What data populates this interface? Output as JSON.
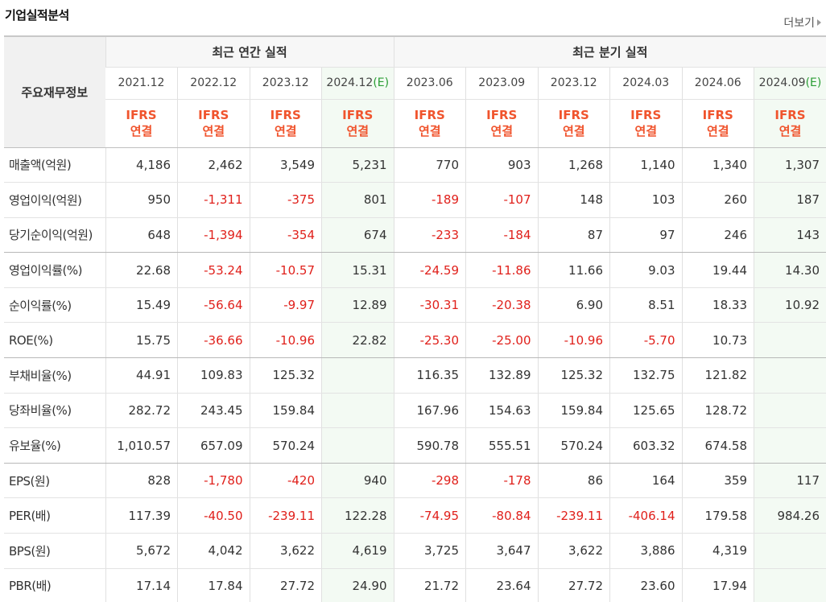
{
  "header": {
    "title": "기업실적분석",
    "more_label": "더보기"
  },
  "table": {
    "label_header": "주요재무정보",
    "groups": [
      "최근 연간 실적",
      "최근 분기 실적"
    ],
    "periods": [
      {
        "label": "2021.12",
        "est": ""
      },
      {
        "label": "2022.12",
        "est": ""
      },
      {
        "label": "2023.12",
        "est": ""
      },
      {
        "label": "2024.12",
        "est": "(E)"
      },
      {
        "label": "2023.06",
        "est": ""
      },
      {
        "label": "2023.09",
        "est": ""
      },
      {
        "label": "2023.12",
        "est": ""
      },
      {
        "label": "2024.03",
        "est": ""
      },
      {
        "label": "2024.06",
        "est": ""
      },
      {
        "label": "2024.09",
        "est": "(E)"
      }
    ],
    "ifrs_line1": "IFRS",
    "ifrs_line2": "연결",
    "rows": [
      {
        "label": "매출액(억원)",
        "values": [
          "4,186",
          "2,462",
          "3,549",
          "5,231",
          "770",
          "903",
          "1,268",
          "1,140",
          "1,340",
          "1,307"
        ]
      },
      {
        "label": "영업이익(억원)",
        "values": [
          "950",
          "-1,311",
          "-375",
          "801",
          "-189",
          "-107",
          "148",
          "103",
          "260",
          "187"
        ]
      },
      {
        "label": "당기순이익(억원)",
        "values": [
          "648",
          "-1,394",
          "-354",
          "674",
          "-233",
          "-184",
          "87",
          "97",
          "246",
          "143"
        ]
      },
      {
        "label": "영업이익률(%)",
        "values": [
          "22.68",
          "-53.24",
          "-10.57",
          "15.31",
          "-24.59",
          "-11.86",
          "11.66",
          "9.03",
          "19.44",
          "14.30"
        ]
      },
      {
        "label": "순이익률(%)",
        "values": [
          "15.49",
          "-56.64",
          "-9.97",
          "12.89",
          "-30.31",
          "-20.38",
          "6.90",
          "8.51",
          "18.33",
          "10.92"
        ]
      },
      {
        "label": "ROE(%)",
        "values": [
          "15.75",
          "-36.66",
          "-10.96",
          "22.82",
          "-25.30",
          "-25.00",
          "-10.96",
          "-5.70",
          "10.73",
          ""
        ]
      },
      {
        "label": "부채비율(%)",
        "values": [
          "44.91",
          "109.83",
          "125.32",
          "",
          "116.35",
          "132.89",
          "125.32",
          "132.75",
          "121.82",
          ""
        ]
      },
      {
        "label": "당좌비율(%)",
        "values": [
          "282.72",
          "243.45",
          "159.84",
          "",
          "167.96",
          "154.63",
          "159.84",
          "125.65",
          "128.72",
          ""
        ]
      },
      {
        "label": "유보율(%)",
        "values": [
          "1,010.57",
          "657.09",
          "570.24",
          "",
          "590.78",
          "555.51",
          "570.24",
          "603.32",
          "674.58",
          ""
        ]
      },
      {
        "label": "EPS(원)",
        "values": [
          "828",
          "-1,780",
          "-420",
          "940",
          "-298",
          "-178",
          "86",
          "164",
          "359",
          "117"
        ]
      },
      {
        "label": "PER(배)",
        "values": [
          "117.39",
          "-40.50",
          "-239.11",
          "122.28",
          "-74.95",
          "-80.84",
          "-239.11",
          "-406.14",
          "179.58",
          "984.26"
        ]
      },
      {
        "label": "BPS(원)",
        "values": [
          "5,672",
          "4,042",
          "3,622",
          "4,619",
          "3,725",
          "3,647",
          "3,622",
          "3,886",
          "4,319",
          ""
        ]
      },
      {
        "label": "PBR(배)",
        "values": [
          "17.14",
          "17.84",
          "27.72",
          "24.90",
          "21.72",
          "23.64",
          "27.72",
          "23.60",
          "17.94",
          ""
        ]
      }
    ]
  }
}
